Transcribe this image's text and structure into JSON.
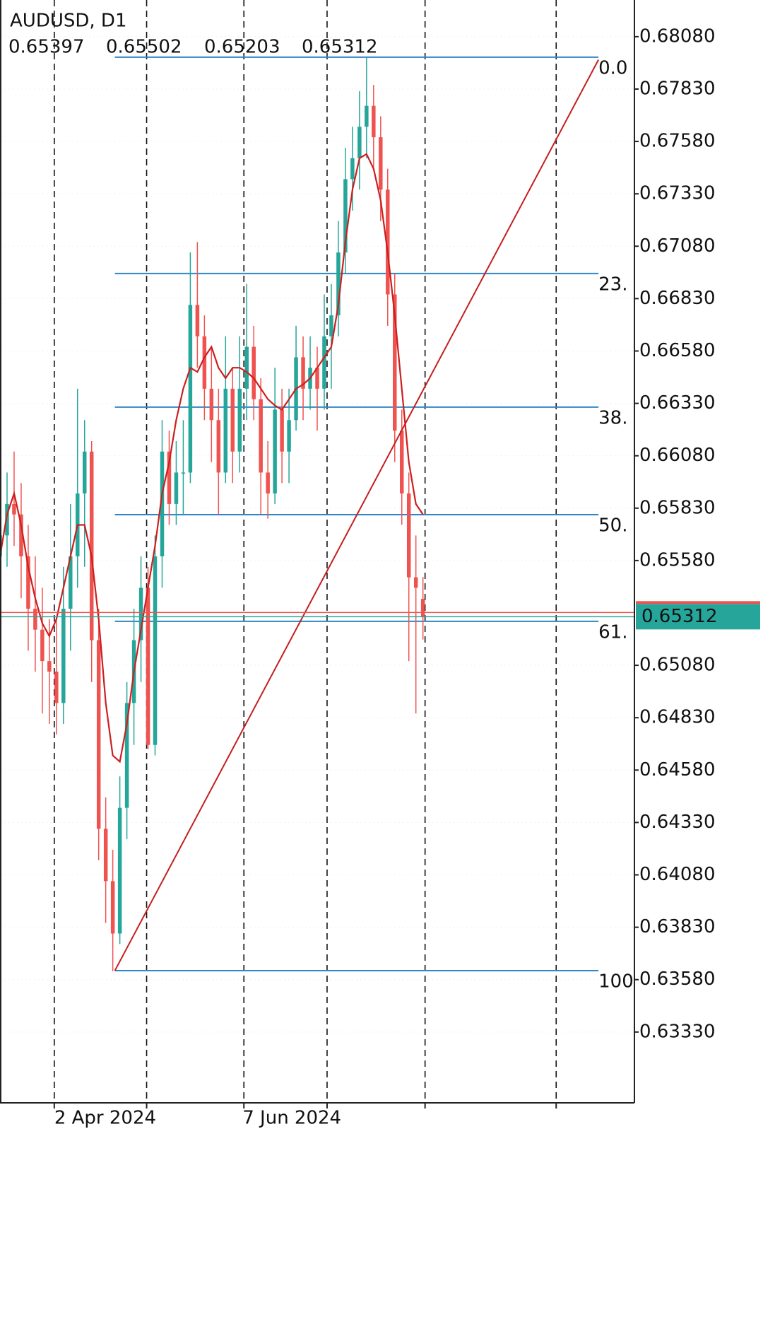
{
  "chart_data": {
    "type": "candlestick",
    "title": "AUDUSD, D1",
    "candles": [
      [
        0.656,
        0.6598,
        0.6548,
        0.657
      ],
      [
        0.657,
        0.66,
        0.6555,
        0.6585
      ],
      [
        0.6585,
        0.661,
        0.6565,
        0.658
      ],
      [
        0.658,
        0.6595,
        0.654,
        0.656
      ],
      [
        0.656,
        0.6575,
        0.6515,
        0.6535
      ],
      [
        0.6535,
        0.656,
        0.6505,
        0.6525
      ],
      [
        0.6525,
        0.6545,
        0.6485,
        0.651
      ],
      [
        0.651,
        0.653,
        0.648,
        0.6505
      ],
      [
        0.6505,
        0.653,
        0.6475,
        0.649
      ],
      [
        0.649,
        0.6555,
        0.648,
        0.6535
      ],
      [
        0.6535,
        0.6585,
        0.6515,
        0.656
      ],
      [
        0.656,
        0.664,
        0.6545,
        0.659
      ],
      [
        0.659,
        0.6625,
        0.6555,
        0.661
      ],
      [
        0.661,
        0.6615,
        0.65,
        0.652
      ],
      [
        0.652,
        0.6535,
        0.6415,
        0.643
      ],
      [
        0.643,
        0.6445,
        0.6385,
        0.6405
      ],
      [
        0.6405,
        0.642,
        0.6362,
        0.638
      ],
      [
        0.638,
        0.6455,
        0.6375,
        0.644
      ],
      [
        0.644,
        0.65,
        0.6425,
        0.649
      ],
      [
        0.649,
        0.6535,
        0.647,
        0.652
      ],
      [
        0.652,
        0.656,
        0.65,
        0.6545
      ],
      [
        0.6545,
        0.6555,
        0.6468,
        0.647
      ],
      [
        0.647,
        0.657,
        0.6465,
        0.656
      ],
      [
        0.656,
        0.6625,
        0.6545,
        0.661
      ],
      [
        0.661,
        0.662,
        0.6575,
        0.6585
      ],
      [
        0.6585,
        0.6615,
        0.6575,
        0.66
      ],
      [
        0.66,
        0.6625,
        0.658,
        0.66
      ],
      [
        0.66,
        0.6705,
        0.6595,
        0.668
      ],
      [
        0.668,
        0.671,
        0.665,
        0.6665
      ],
      [
        0.6665,
        0.6675,
        0.6625,
        0.664
      ],
      [
        0.664,
        0.666,
        0.6605,
        0.6625
      ],
      [
        0.6625,
        0.664,
        0.658,
        0.66
      ],
      [
        0.66,
        0.6665,
        0.6595,
        0.664
      ],
      [
        0.664,
        0.665,
        0.6595,
        0.661
      ],
      [
        0.661,
        0.6665,
        0.66,
        0.664
      ],
      [
        0.664,
        0.669,
        0.6625,
        0.666
      ],
      [
        0.666,
        0.667,
        0.6625,
        0.6635
      ],
      [
        0.6635,
        0.6645,
        0.658,
        0.66
      ],
      [
        0.66,
        0.6615,
        0.6578,
        0.659
      ],
      [
        0.659,
        0.665,
        0.6585,
        0.663
      ],
      [
        0.663,
        0.664,
        0.6595,
        0.661
      ],
      [
        0.661,
        0.664,
        0.6595,
        0.6625
      ],
      [
        0.6625,
        0.667,
        0.662,
        0.6655
      ],
      [
        0.6655,
        0.6665,
        0.6625,
        0.664
      ],
      [
        0.664,
        0.6665,
        0.663,
        0.665
      ],
      [
        0.665,
        0.666,
        0.662,
        0.664
      ],
      [
        0.664,
        0.6685,
        0.663,
        0.6665
      ],
      [
        0.6665,
        0.669,
        0.664,
        0.6675
      ],
      [
        0.6675,
        0.672,
        0.6665,
        0.6705
      ],
      [
        0.6705,
        0.6755,
        0.6695,
        0.674
      ],
      [
        0.674,
        0.6765,
        0.6725,
        0.675
      ],
      [
        0.675,
        0.6782,
        0.6735,
        0.6765
      ],
      [
        0.6765,
        0.6798,
        0.675,
        0.6775
      ],
      [
        0.6775,
        0.6785,
        0.6745,
        0.676
      ],
      [
        0.676,
        0.677,
        0.672,
        0.6735
      ],
      [
        0.6735,
        0.6745,
        0.667,
        0.6685
      ],
      [
        0.6685,
        0.6695,
        0.6605,
        0.662
      ],
      [
        0.662,
        0.663,
        0.6575,
        0.659
      ],
      [
        0.659,
        0.66,
        0.651,
        0.655
      ],
      [
        0.655,
        0.657,
        0.6485,
        0.6545
      ],
      [
        0.65397,
        0.65502,
        0.65203,
        0.65312
      ]
    ],
    "ma": [
      0.656,
      0.658,
      0.659,
      0.6575,
      0.6555,
      0.654,
      0.6528,
      0.6522,
      0.653,
      0.6545,
      0.656,
      0.6575,
      0.6575,
      0.656,
      0.653,
      0.649,
      0.6465,
      0.6462,
      0.648,
      0.6505,
      0.6525,
      0.6545,
      0.6565,
      0.659,
      0.6605,
      0.6625,
      0.664,
      0.665,
      0.6648,
      0.6655,
      0.666,
      0.665,
      0.6645,
      0.665,
      0.665,
      0.6648,
      0.6645,
      0.664,
      0.6635,
      0.6632,
      0.663,
      0.6635,
      0.664,
      0.6642,
      0.6645,
      0.665,
      0.6655,
      0.666,
      0.668,
      0.671,
      0.6735,
      0.675,
      0.6752,
      0.6745,
      0.673,
      0.6705,
      0.6675,
      0.664,
      0.6605,
      0.6585,
      0.658
    ],
    "fib": {
      "x": [
        16.3,
        84.9
      ],
      "levels": [
        {
          "value": 0.67982,
          "label": "0.0"
        },
        {
          "value": 0.6695,
          "label": "23."
        },
        {
          "value": 0.66312,
          "label": "38."
        },
        {
          "value": 0.65799,
          "label": "50."
        },
        {
          "value": 0.6529,
          "label": "61."
        },
        {
          "value": 0.63623,
          "label": "100"
        }
      ]
    },
    "trendline": {
      "x": [
        16.3,
        84.9
      ],
      "y": [
        0.63623,
        0.6797
      ]
    },
    "xlim": [
      0,
      90
    ],
    "xticks": [
      {
        "value": 7.7,
        "label": "2 Apr 2024"
      },
      {
        "value": 34.4,
        "label": "7 Jun 2024"
      }
    ],
    "xgrid": [
      7.7,
      20.8,
      34.6,
      46.4,
      60.3,
      78.9
    ],
    "ylim": [
      0.62992,
      0.68255
    ],
    "yticks": [
      {
        "value": 0.6808,
        "label": "0.68080"
      },
      {
        "value": 0.6783,
        "label": "0.67830"
      },
      {
        "value": 0.6758,
        "label": "0.67580"
      },
      {
        "value": 0.6733,
        "label": "0.67330"
      },
      {
        "value": 0.6708,
        "label": "0.67080"
      },
      {
        "value": 0.6683,
        "label": "0.66830"
      },
      {
        "value": 0.6658,
        "label": "0.66580"
      },
      {
        "value": 0.6633,
        "label": "0.66330"
      },
      {
        "value": 0.6608,
        "label": "0.66080"
      },
      {
        "value": 0.6583,
        "label": "0.65830"
      },
      {
        "value": 0.6558,
        "label": "0.65580"
      },
      {
        "value": 0.6508,
        "label": "0.65080"
      },
      {
        "value": 0.6483,
        "label": "0.64830"
      },
      {
        "value": 0.6458,
        "label": "0.64580"
      },
      {
        "value": 0.6433,
        "label": "0.64330"
      },
      {
        "value": 0.6408,
        "label": "0.64080"
      },
      {
        "value": 0.6383,
        "label": "0.63830"
      },
      {
        "value": 0.6358,
        "label": "0.63580"
      },
      {
        "value": 0.6333,
        "label": "0.63330"
      }
    ],
    "up_color": "#26a69a",
    "down_color": "#ef5350",
    "ma_color": "#cc1f1f",
    "trend_color": "#c41e1e",
    "fib_color": "#2f86c8",
    "price_color": "#26a69a"
  }
}
